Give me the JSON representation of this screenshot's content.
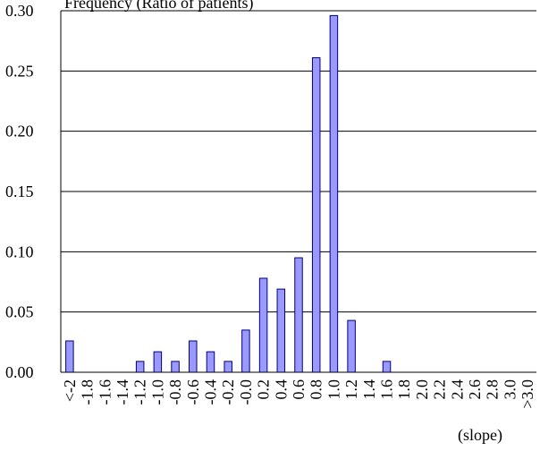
{
  "chart_data": {
    "type": "bar",
    "title": "Frequency (Ratio of patients)",
    "xlabel": "(slope)",
    "ylabel": "",
    "ylim": [
      0,
      0.3
    ],
    "yticks": [
      "0.00",
      "0.05",
      "0.10",
      "0.15",
      "0.20",
      "0.25",
      "0.30"
    ],
    "grid": "horizontal",
    "legend": "none",
    "categories": [
      "<-2",
      "-1.8",
      "-1.6",
      "-1.4",
      "-1.2",
      "-1.0",
      "-0.8",
      "-0.6",
      "-0.4",
      "-0.2",
      "0.0",
      "0.2",
      "0.4",
      "0.6",
      "0.8",
      "1.0",
      "1.2",
      "1.4",
      "1.6",
      "1.8",
      "2.0",
      "2.2",
      "2.4",
      "2.6",
      "2.8",
      "3.0",
      ">3.0"
    ],
    "category_labels": [
      "<-2",
      "-1.8",
      "-1.6",
      "-1.4",
      "-1.2",
      "-1.0",
      "-0.8",
      "-0.6",
      "-0.4",
      "-0.2",
      "-0.0",
      "0.2",
      "0.4",
      "0.6",
      "0.8",
      "1.0",
      "1.2",
      "1.4",
      "1.6",
      "1.8",
      "2.0",
      "2.2",
      "2.4",
      "2.6",
      "2.8",
      "3.0",
      ">3.0"
    ],
    "values": [
      0.026,
      0,
      0,
      0,
      0.009,
      0.017,
      0.009,
      0.026,
      0.017,
      0.009,
      0.035,
      0.078,
      0.069,
      0.095,
      0.261,
      0.296,
      0.043,
      0,
      0.009,
      0,
      0,
      0,
      0,
      0,
      0,
      0,
      0
    ],
    "colors": {
      "bar_fill": "#9999ff",
      "bar_stroke": "#000080",
      "grid": "#000000"
    }
  }
}
